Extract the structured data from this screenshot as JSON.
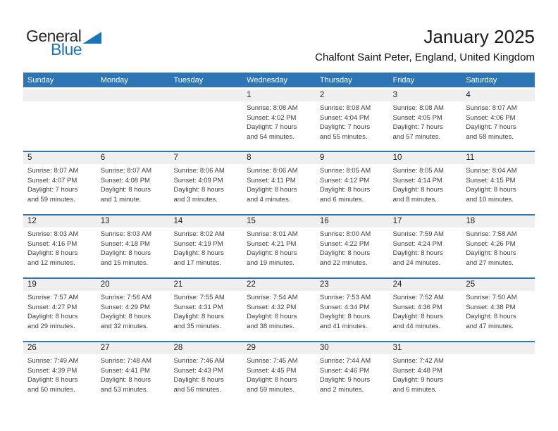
{
  "header": {
    "logo": {
      "text_top": "General",
      "text_bottom": "Blue"
    },
    "title": "January 2025",
    "subtitle": "Chalfont Saint Peter, England, United Kingdom"
  },
  "calendar": {
    "weekday_headers": [
      "Sunday",
      "Monday",
      "Tuesday",
      "Wednesday",
      "Thursday",
      "Friday",
      "Saturday"
    ],
    "field_labels": {
      "sunrise": "Sunrise:",
      "sunset": "Sunset:",
      "daylight": "Daylight:"
    },
    "weeks": [
      [
        null,
        null,
        null,
        {
          "day": "1",
          "sunrise": "8:08 AM",
          "sunset": "4:02 PM",
          "daylight": "7 hours and 54 minutes."
        },
        {
          "day": "2",
          "sunrise": "8:08 AM",
          "sunset": "4:04 PM",
          "daylight": "7 hours and 55 minutes."
        },
        {
          "day": "3",
          "sunrise": "8:08 AM",
          "sunset": "4:05 PM",
          "daylight": "7 hours and 57 minutes."
        },
        {
          "day": "4",
          "sunrise": "8:07 AM",
          "sunset": "4:06 PM",
          "daylight": "7 hours and 58 minutes."
        }
      ],
      [
        {
          "day": "5",
          "sunrise": "8:07 AM",
          "sunset": "4:07 PM",
          "daylight": "7 hours and 59 minutes."
        },
        {
          "day": "6",
          "sunrise": "8:07 AM",
          "sunset": "4:08 PM",
          "daylight": "8 hours and 1 minute."
        },
        {
          "day": "7",
          "sunrise": "8:06 AM",
          "sunset": "4:09 PM",
          "daylight": "8 hours and 3 minutes."
        },
        {
          "day": "8",
          "sunrise": "8:06 AM",
          "sunset": "4:11 PM",
          "daylight": "8 hours and 4 minutes."
        },
        {
          "day": "9",
          "sunrise": "8:05 AM",
          "sunset": "4:12 PM",
          "daylight": "8 hours and 6 minutes."
        },
        {
          "day": "10",
          "sunrise": "8:05 AM",
          "sunset": "4:14 PM",
          "daylight": "8 hours and 8 minutes."
        },
        {
          "day": "11",
          "sunrise": "8:04 AM",
          "sunset": "4:15 PM",
          "daylight": "8 hours and 10 minutes."
        }
      ],
      [
        {
          "day": "12",
          "sunrise": "8:03 AM",
          "sunset": "4:16 PM",
          "daylight": "8 hours and 12 minutes."
        },
        {
          "day": "13",
          "sunrise": "8:03 AM",
          "sunset": "4:18 PM",
          "daylight": "8 hours and 15 minutes."
        },
        {
          "day": "14",
          "sunrise": "8:02 AM",
          "sunset": "4:19 PM",
          "daylight": "8 hours and 17 minutes."
        },
        {
          "day": "15",
          "sunrise": "8:01 AM",
          "sunset": "4:21 PM",
          "daylight": "8 hours and 19 minutes."
        },
        {
          "day": "16",
          "sunrise": "8:00 AM",
          "sunset": "4:22 PM",
          "daylight": "8 hours and 22 minutes."
        },
        {
          "day": "17",
          "sunrise": "7:59 AM",
          "sunset": "4:24 PM",
          "daylight": "8 hours and 24 minutes."
        },
        {
          "day": "18",
          "sunrise": "7:58 AM",
          "sunset": "4:26 PM",
          "daylight": "8 hours and 27 minutes."
        }
      ],
      [
        {
          "day": "19",
          "sunrise": "7:57 AM",
          "sunset": "4:27 PM",
          "daylight": "8 hours and 29 minutes."
        },
        {
          "day": "20",
          "sunrise": "7:56 AM",
          "sunset": "4:29 PM",
          "daylight": "8 hours and 32 minutes."
        },
        {
          "day": "21",
          "sunrise": "7:55 AM",
          "sunset": "4:31 PM",
          "daylight": "8 hours and 35 minutes."
        },
        {
          "day": "22",
          "sunrise": "7:54 AM",
          "sunset": "4:32 PM",
          "daylight": "8 hours and 38 minutes."
        },
        {
          "day": "23",
          "sunrise": "7:53 AM",
          "sunset": "4:34 PM",
          "daylight": "8 hours and 41 minutes."
        },
        {
          "day": "24",
          "sunrise": "7:52 AM",
          "sunset": "4:36 PM",
          "daylight": "8 hours and 44 minutes."
        },
        {
          "day": "25",
          "sunrise": "7:50 AM",
          "sunset": "4:38 PM",
          "daylight": "8 hours and 47 minutes."
        }
      ],
      [
        {
          "day": "26",
          "sunrise": "7:49 AM",
          "sunset": "4:39 PM",
          "daylight": "8 hours and 50 minutes."
        },
        {
          "day": "27",
          "sunrise": "7:48 AM",
          "sunset": "4:41 PM",
          "daylight": "8 hours and 53 minutes."
        },
        {
          "day": "28",
          "sunrise": "7:46 AM",
          "sunset": "4:43 PM",
          "daylight": "8 hours and 56 minutes."
        },
        {
          "day": "29",
          "sunrise": "7:45 AM",
          "sunset": "4:45 PM",
          "daylight": "8 hours and 59 minutes."
        },
        {
          "day": "30",
          "sunrise": "7:44 AM",
          "sunset": "4:46 PM",
          "daylight": "9 hours and 2 minutes."
        },
        {
          "day": "31",
          "sunrise": "7:42 AM",
          "sunset": "4:48 PM",
          "daylight": "9 hours and 6 minutes."
        },
        null
      ]
    ]
  },
  "colors": {
    "header_bar": "#2E75B6",
    "week_divider": "#2E75B6",
    "day_number_strip": "#EFEFEF",
    "logo_blue": "#1B75BC",
    "body_text": "#3E3E3E"
  }
}
